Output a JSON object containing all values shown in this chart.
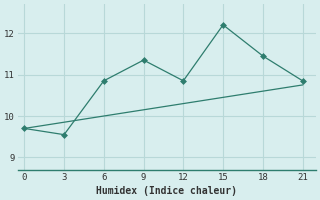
{
  "xlabel": "Humidex (Indice chaleur)",
  "line1_x": [
    0,
    3,
    6,
    9,
    12,
    15,
    18,
    21
  ],
  "line1_y": [
    9.7,
    9.55,
    10.85,
    11.35,
    10.85,
    12.2,
    11.45,
    10.85
  ],
  "line2_x": [
    0,
    3,
    6,
    9,
    12,
    15,
    18,
    21
  ],
  "line2_y": [
    9.7,
    9.85,
    10.0,
    10.15,
    10.3,
    10.45,
    10.6,
    10.75
  ],
  "line_color": "#2e7d6e",
  "bg_color": "#d8eeee",
  "grid_color": "#b8d8d8",
  "xlim": [
    -0.5,
    22
  ],
  "ylim": [
    8.7,
    12.7
  ],
  "xticks": [
    0,
    3,
    6,
    9,
    12,
    15,
    18,
    21
  ],
  "yticks": [
    9,
    10,
    11,
    12
  ],
  "marker": "D",
  "markersize": 3
}
